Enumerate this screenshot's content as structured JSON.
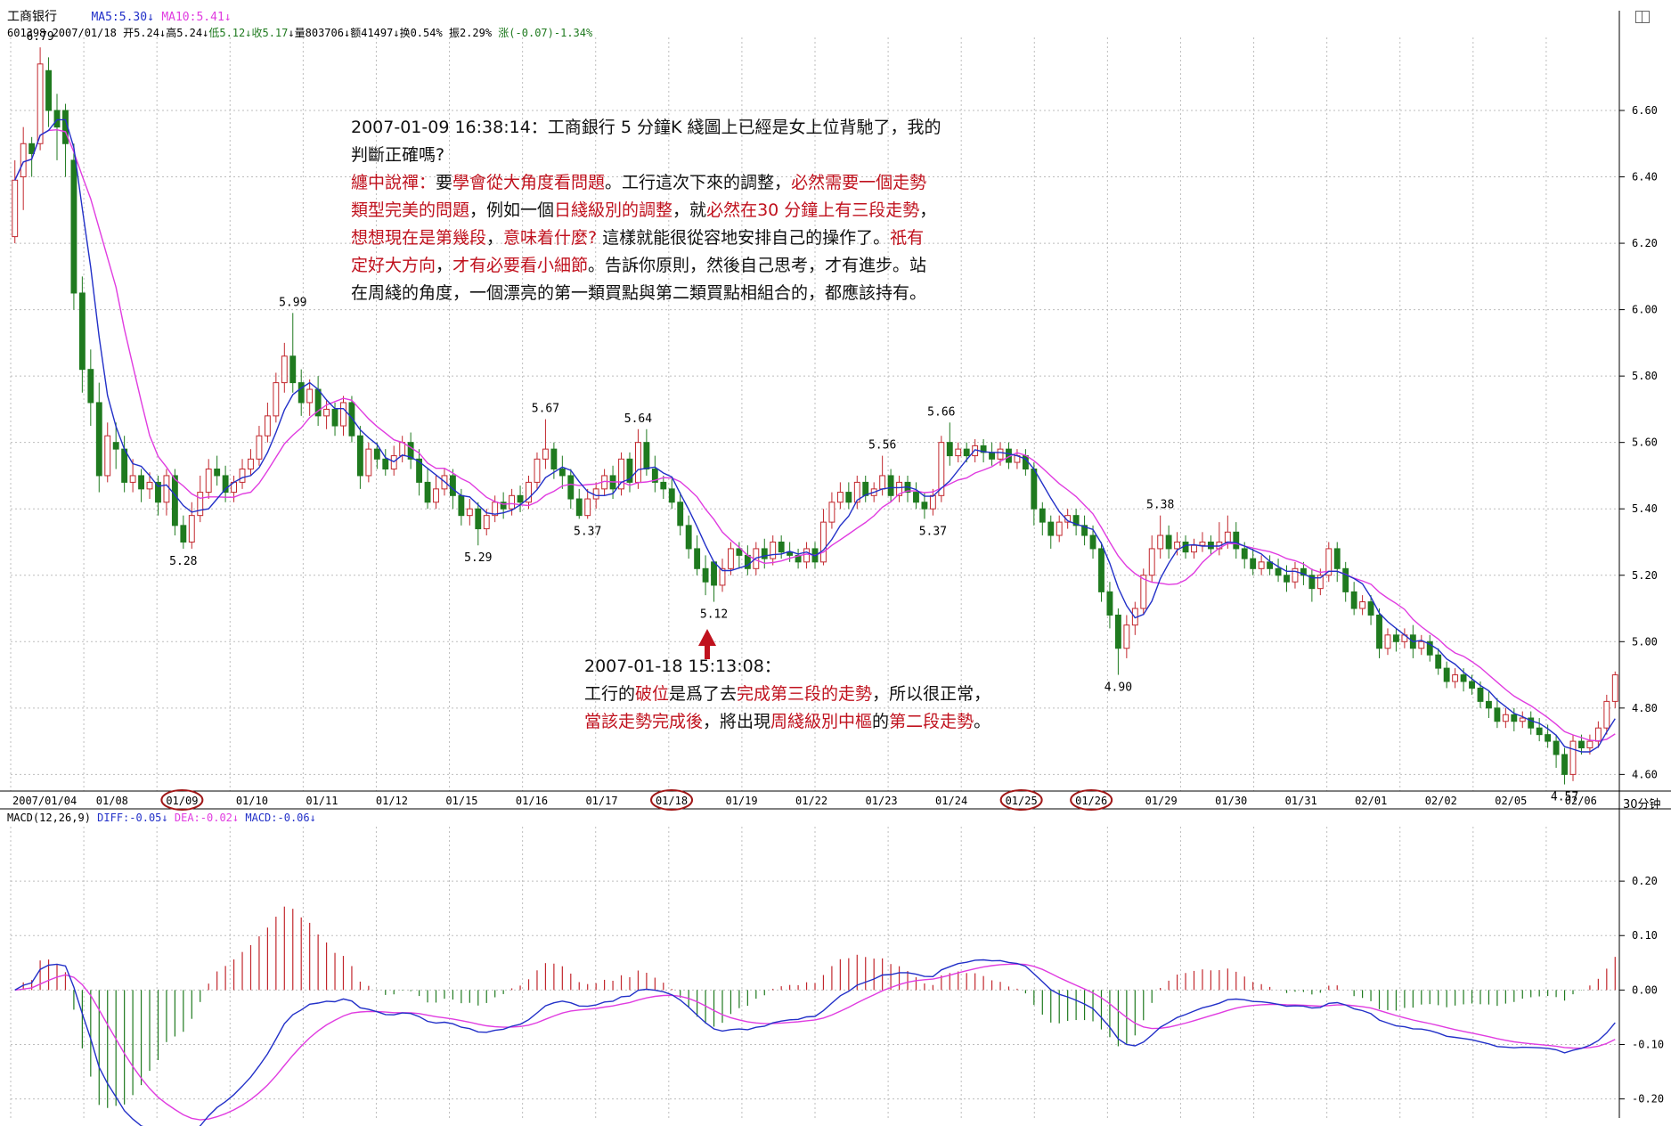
{
  "header": {
    "stock_name": "工商银行",
    "ma5": "MA5:5.30",
    "ma10": "MA10:5.41",
    "info_code_date": "601398 2007/01/18",
    "info_open": "开5.24",
    "info_high": "高5.24",
    "info_low": "低5.12",
    "info_close": "收5.17",
    "info_volume": "量803706",
    "info_amount": "额41497",
    "info_turnover": "换0.54%",
    "info_amplitude": "振2.29%",
    "info_change": "涨(-0.07)-1.34%"
  },
  "macd_header": {
    "label": "MACD(12,26,9)",
    "diff": "DIFF:-0.05",
    "dea": "DEA:-0.02",
    "macd": "MACD:-0.06"
  },
  "period_label": "30分钟",
  "colors": {
    "up": "#c2272d",
    "down": "#1f7a1f",
    "ma5": "#2230c8",
    "ma10": "#e03ce0",
    "note_red": "#c0121e",
    "grid": "#bdbdbd"
  },
  "annotations": {
    "note1_line1": "2007-01-09 16:38:14：工商銀行 5 分鐘K 綫圖上已經是女上位背馳了，我的",
    "note1_line2": "判斷正確嗎?",
    "note2_l1_a": "纏中說禪：",
    "note2_l1_b": "要",
    "note2_l1_c": "學會從大角度看問題",
    "note2_l1_d": "。工行這次下來的調整，",
    "note2_l1_e": "必然需要一個走勢",
    "note2_l2_a": "類型完美的問題",
    "note2_l2_b": "，例如一個",
    "note2_l2_c": "日綫級別的調整",
    "note2_l2_d": "，就",
    "note2_l2_e": "必然在30 分鐘上有三段走勢",
    "note2_l2_f": "，",
    "note2_l3_a": "想想現在是第幾段",
    "note2_l3_b": "，",
    "note2_l3_c": "意味着什麼?",
    "note2_l3_d": " 這樣就能很從容地安排自己的操作了。",
    "note2_l3_e": "祇有",
    "note2_l4_a": "定好大方向",
    "note2_l4_b": "，",
    "note2_l4_c": "才有必要看小細節",
    "note2_l4_d": "。告訴你原則，然後自己思考，才有進步。站",
    "note2_l5": "在周綫的角度，一個漂亮的第一類買點與第二類買點相組合的，都應該持有。",
    "note3_line1": "2007-01-18 15:13:08：",
    "note3_l2_a": "工行的",
    "note3_l2_b": "破位",
    "note3_l2_c": "是爲了去",
    "note3_l2_d": "完成第三段的走勢",
    "note3_l2_e": "，所以很正常，",
    "note3_l3_a": "當該走勢完成後",
    "note3_l3_b": "，將出現",
    "note3_l3_c": "周綫級別中樞",
    "note3_l3_d": "的",
    "note3_l3_e": "第二段走勢",
    "note3_l3_f": "。"
  },
  "chart_data": {
    "type": "candlestick",
    "price_axis": {
      "ticks": [
        "6.60",
        "6.40",
        "6.20",
        "6.00",
        "5.80",
        "5.60",
        "5.40",
        "5.20",
        "5.00",
        "4.80",
        "4.60"
      ],
      "ylim": [
        4.55,
        6.82
      ]
    },
    "macd_axis": {
      "ticks": [
        "0.20",
        "0.10",
        "0.00",
        "-0.10",
        "-0.20"
      ],
      "ylim": [
        -0.235,
        0.3
      ]
    },
    "date_labels": [
      "2007/01/04",
      "01/08",
      "01/09",
      "01/10",
      "01/11",
      "01/12",
      "01/15",
      "01/16",
      "01/17",
      "01/18",
      "01/19",
      "01/22",
      "01/23",
      "01/24",
      "01/25",
      "01/26",
      "01/29",
      "01/30",
      "01/31",
      "02/01",
      "02/02",
      "02/05",
      "02/06"
    ],
    "circled_dates": [
      "01/09",
      "01/18",
      "01/25",
      "01/26"
    ],
    "price_labels": [
      {
        "text": "6.79",
        "bar": 3,
        "value": 6.79,
        "pos": "above"
      },
      {
        "text": "5.99",
        "bar": 33,
        "value": 5.99,
        "pos": "above"
      },
      {
        "text": "5.28",
        "bar": 20,
        "value": 5.28,
        "pos": "below"
      },
      {
        "text": "5.67",
        "bar": 63,
        "value": 5.67,
        "pos": "above"
      },
      {
        "text": "5.29",
        "bar": 55,
        "value": 5.29,
        "pos": "below"
      },
      {
        "text": "5.64",
        "bar": 74,
        "value": 5.64,
        "pos": "above"
      },
      {
        "text": "5.37",
        "bar": 68,
        "value": 5.37,
        "pos": "below"
      },
      {
        "text": "5.12",
        "bar": 83,
        "value": 5.12,
        "pos": "below"
      },
      {
        "text": "5.56",
        "bar": 103,
        "value": 5.56,
        "pos": "above"
      },
      {
        "text": "5.66",
        "bar": 110,
        "value": 5.66,
        "pos": "above"
      },
      {
        "text": "5.37",
        "bar": 109,
        "value": 5.37,
        "pos": "below"
      },
      {
        "text": "4.90",
        "bar": 131,
        "value": 4.9,
        "pos": "below"
      },
      {
        "text": "5.38",
        "bar": 136,
        "value": 5.38,
        "pos": "above"
      },
      {
        "text": "4.57",
        "bar": 184,
        "value": 4.57,
        "pos": "below"
      }
    ],
    "candles": [
      [
        6.22,
        6.39,
        6.2,
        6.45
      ],
      [
        6.4,
        6.5,
        6.3,
        6.55
      ],
      [
        6.5,
        6.47,
        6.4,
        6.52
      ],
      [
        6.5,
        6.74,
        6.48,
        6.79
      ],
      [
        6.72,
        6.6,
        6.55,
        6.76
      ],
      [
        6.6,
        6.55,
        6.45,
        6.65
      ],
      [
        6.6,
        6.5,
        6.4,
        6.62
      ],
      [
        6.45,
        6.05,
        6.0,
        6.5
      ],
      [
        6.05,
        5.82,
        5.75,
        6.1
      ],
      [
        5.82,
        5.72,
        5.65,
        5.88
      ],
      [
        5.72,
        5.5,
        5.45,
        5.78
      ],
      [
        5.5,
        5.62,
        5.48,
        5.66
      ],
      [
        5.6,
        5.58,
        5.52,
        5.66
      ],
      [
        5.58,
        5.48,
        5.45,
        5.62
      ],
      [
        5.48,
        5.5,
        5.45,
        5.55
      ],
      [
        5.5,
        5.46,
        5.42,
        5.52
      ],
      [
        5.46,
        5.48,
        5.43,
        5.51
      ],
      [
        5.48,
        5.42,
        5.38,
        5.5
      ],
      [
        5.42,
        5.5,
        5.38,
        5.52
      ],
      [
        5.5,
        5.35,
        5.32,
        5.52
      ],
      [
        5.35,
        5.3,
        5.28,
        5.38
      ],
      [
        5.3,
        5.38,
        5.28,
        5.42
      ],
      [
        5.38,
        5.45,
        5.36,
        5.5
      ],
      [
        5.45,
        5.52,
        5.43,
        5.55
      ],
      [
        5.52,
        5.5,
        5.47,
        5.56
      ],
      [
        5.5,
        5.45,
        5.42,
        5.53
      ],
      [
        5.45,
        5.48,
        5.42,
        5.5
      ],
      [
        5.48,
        5.52,
        5.46,
        5.55
      ],
      [
        5.52,
        5.55,
        5.5,
        5.58
      ],
      [
        5.55,
        5.62,
        5.53,
        5.65
      ],
      [
        5.62,
        5.68,
        5.6,
        5.72
      ],
      [
        5.68,
        5.78,
        5.66,
        5.81
      ],
      [
        5.78,
        5.86,
        5.75,
        5.9
      ],
      [
        5.86,
        5.78,
        5.75,
        5.99
      ],
      [
        5.78,
        5.72,
        5.68,
        5.82
      ],
      [
        5.72,
        5.76,
        5.68,
        5.79
      ],
      [
        5.76,
        5.68,
        5.65,
        5.8
      ],
      [
        5.68,
        5.7,
        5.64,
        5.73
      ],
      [
        5.7,
        5.65,
        5.62,
        5.72
      ],
      [
        5.65,
        5.72,
        5.62,
        5.74
      ],
      [
        5.72,
        5.62,
        5.6,
        5.74
      ],
      [
        5.62,
        5.5,
        5.46,
        5.65
      ],
      [
        5.5,
        5.58,
        5.48,
        5.6
      ],
      [
        5.58,
        5.55,
        5.52,
        5.6
      ],
      [
        5.55,
        5.52,
        5.5,
        5.58
      ],
      [
        5.52,
        5.56,
        5.5,
        5.59
      ],
      [
        5.56,
        5.6,
        5.54,
        5.62
      ],
      [
        5.6,
        5.55,
        5.52,
        5.63
      ],
      [
        5.55,
        5.48,
        5.44,
        5.58
      ],
      [
        5.48,
        5.42,
        5.4,
        5.52
      ],
      [
        5.42,
        5.46,
        5.4,
        5.5
      ],
      [
        5.46,
        5.5,
        5.44,
        5.52
      ],
      [
        5.5,
        5.44,
        5.4,
        5.52
      ],
      [
        5.44,
        5.38,
        5.35,
        5.46
      ],
      [
        5.38,
        5.4,
        5.35,
        5.43
      ],
      [
        5.4,
        5.34,
        5.29,
        5.42
      ],
      [
        5.34,
        5.38,
        5.32,
        5.4
      ],
      [
        5.38,
        5.42,
        5.36,
        5.44
      ],
      [
        5.42,
        5.4,
        5.37,
        5.45
      ],
      [
        5.4,
        5.44,
        5.38,
        5.46
      ],
      [
        5.44,
        5.42,
        5.39,
        5.47
      ],
      [
        5.42,
        5.48,
        5.4,
        5.5
      ],
      [
        5.48,
        5.55,
        5.46,
        5.57
      ],
      [
        5.55,
        5.58,
        5.52,
        5.67
      ],
      [
        5.58,
        5.52,
        5.49,
        5.6
      ],
      [
        5.52,
        5.5,
        5.46,
        5.56
      ],
      [
        5.5,
        5.43,
        5.4,
        5.52
      ],
      [
        5.43,
        5.38,
        5.37,
        5.46
      ],
      [
        5.38,
        5.43,
        5.37,
        5.46
      ],
      [
        5.43,
        5.46,
        5.4,
        5.48
      ],
      [
        5.46,
        5.5,
        5.44,
        5.52
      ],
      [
        5.5,
        5.46,
        5.43,
        5.53
      ],
      [
        5.46,
        5.55,
        5.44,
        5.57
      ],
      [
        5.55,
        5.48,
        5.45,
        5.57
      ],
      [
        5.48,
        5.6,
        5.46,
        5.64
      ],
      [
        5.6,
        5.52,
        5.5,
        5.64
      ],
      [
        5.52,
        5.48,
        5.45,
        5.56
      ],
      [
        5.48,
        5.46,
        5.43,
        5.5
      ],
      [
        5.46,
        5.42,
        5.4,
        5.49
      ],
      [
        5.42,
        5.35,
        5.32,
        5.45
      ],
      [
        5.35,
        5.28,
        5.25,
        5.38
      ],
      [
        5.28,
        5.22,
        5.2,
        5.32
      ],
      [
        5.22,
        5.18,
        5.14,
        5.26
      ],
      [
        5.24,
        5.17,
        5.12,
        5.24
      ],
      [
        5.17,
        5.22,
        5.15,
        5.25
      ],
      [
        5.22,
        5.28,
        5.2,
        5.3
      ],
      [
        5.28,
        5.26,
        5.22,
        5.3
      ],
      [
        5.26,
        5.22,
        5.2,
        5.29
      ],
      [
        5.22,
        5.28,
        5.2,
        5.3
      ],
      [
        5.28,
        5.25,
        5.22,
        5.31
      ],
      [
        5.25,
        5.3,
        5.23,
        5.32
      ],
      [
        5.3,
        5.27,
        5.25,
        5.32
      ],
      [
        5.27,
        5.26,
        5.24,
        5.3
      ],
      [
        5.26,
        5.24,
        5.22,
        5.28
      ],
      [
        5.24,
        5.28,
        5.22,
        5.3
      ],
      [
        5.28,
        5.24,
        5.22,
        5.3
      ],
      [
        5.24,
        5.36,
        5.23,
        5.4
      ],
      [
        5.36,
        5.42,
        5.34,
        5.45
      ],
      [
        5.42,
        5.45,
        5.4,
        5.48
      ],
      [
        5.45,
        5.42,
        5.4,
        5.48
      ],
      [
        5.42,
        5.48,
        5.4,
        5.5
      ],
      [
        5.48,
        5.44,
        5.42,
        5.5
      ],
      [
        5.44,
        5.46,
        5.42,
        5.48
      ],
      [
        5.46,
        5.5,
        5.44,
        5.56
      ],
      [
        5.5,
        5.44,
        5.42,
        5.52
      ],
      [
        5.44,
        5.48,
        5.42,
        5.5
      ],
      [
        5.48,
        5.45,
        5.42,
        5.5
      ],
      [
        5.45,
        5.42,
        5.4,
        5.48
      ],
      [
        5.42,
        5.4,
        5.37,
        5.45
      ],
      [
        5.4,
        5.44,
        5.38,
        5.46
      ],
      [
        5.44,
        5.6,
        5.42,
        5.62
      ],
      [
        5.6,
        5.56,
        5.53,
        5.66
      ],
      [
        5.56,
        5.58,
        5.54,
        5.6
      ],
      [
        5.58,
        5.56,
        5.54,
        5.6
      ],
      [
        5.56,
        5.59,
        5.54,
        5.61
      ],
      [
        5.59,
        5.57,
        5.54,
        5.61
      ],
      [
        5.57,
        5.55,
        5.53,
        5.6
      ],
      [
        5.55,
        5.58,
        5.53,
        5.6
      ],
      [
        5.58,
        5.54,
        5.52,
        5.6
      ],
      [
        5.54,
        5.56,
        5.52,
        5.58
      ],
      [
        5.56,
        5.52,
        5.5,
        5.58
      ],
      [
        5.52,
        5.4,
        5.35,
        5.54
      ],
      [
        5.4,
        5.36,
        5.32,
        5.42
      ],
      [
        5.36,
        5.32,
        5.28,
        5.38
      ],
      [
        5.32,
        5.36,
        5.3,
        5.38
      ],
      [
        5.36,
        5.38,
        5.34,
        5.4
      ],
      [
        5.38,
        5.35,
        5.32,
        5.4
      ],
      [
        5.35,
        5.32,
        5.29,
        5.38
      ],
      [
        5.32,
        5.28,
        5.25,
        5.35
      ],
      [
        5.28,
        5.15,
        5.12,
        5.3
      ],
      [
        5.15,
        5.08,
        5.04,
        5.18
      ],
      [
        5.08,
        4.98,
        4.9,
        5.1
      ],
      [
        4.98,
        5.05,
        4.95,
        5.08
      ],
      [
        5.05,
        5.1,
        5.02,
        5.12
      ],
      [
        5.1,
        5.2,
        5.08,
        5.22
      ],
      [
        5.2,
        5.28,
        5.18,
        5.32
      ],
      [
        5.28,
        5.32,
        5.25,
        5.38
      ],
      [
        5.32,
        5.28,
        5.25,
        5.35
      ],
      [
        5.28,
        5.3,
        5.26,
        5.33
      ],
      [
        5.3,
        5.27,
        5.25,
        5.32
      ],
      [
        5.27,
        5.29,
        5.25,
        5.31
      ],
      [
        5.29,
        5.3,
        5.27,
        5.33
      ],
      [
        5.3,
        5.28,
        5.26,
        5.32
      ],
      [
        5.28,
        5.3,
        5.26,
        5.36
      ],
      [
        5.3,
        5.33,
        5.28,
        5.38
      ],
      [
        5.33,
        5.28,
        5.25,
        5.36
      ],
      [
        5.28,
        5.25,
        5.22,
        5.3
      ],
      [
        5.25,
        5.22,
        5.2,
        5.28
      ],
      [
        5.22,
        5.24,
        5.2,
        5.26
      ],
      [
        5.24,
        5.22,
        5.2,
        5.26
      ],
      [
        5.22,
        5.2,
        5.18,
        5.25
      ],
      [
        5.2,
        5.18,
        5.15,
        5.23
      ],
      [
        5.18,
        5.22,
        5.16,
        5.24
      ],
      [
        5.22,
        5.2,
        5.17,
        5.24
      ],
      [
        5.2,
        5.16,
        5.12,
        5.22
      ],
      [
        5.16,
        5.2,
        5.14,
        5.22
      ],
      [
        5.2,
        5.28,
        5.18,
        5.3
      ],
      [
        5.28,
        5.22,
        5.18,
        5.3
      ],
      [
        5.22,
        5.15,
        5.12,
        5.24
      ],
      [
        5.15,
        5.1,
        5.08,
        5.18
      ],
      [
        5.1,
        5.12,
        5.08,
        5.14
      ],
      [
        5.12,
        5.08,
        5.05,
        5.14
      ],
      [
        5.08,
        4.98,
        4.95,
        5.1
      ],
      [
        4.98,
        5.02,
        4.96,
        5.04
      ],
      [
        5.02,
        5.0,
        4.97,
        5.04
      ],
      [
        5.0,
        5.02,
        4.98,
        5.04
      ],
      [
        5.02,
        4.98,
        4.95,
        5.05
      ],
      [
        4.98,
        5.0,
        4.96,
        5.02
      ],
      [
        5.0,
        4.96,
        4.94,
        5.02
      ],
      [
        4.96,
        4.92,
        4.9,
        4.98
      ],
      [
        4.92,
        4.88,
        4.86,
        4.94
      ],
      [
        4.88,
        4.9,
        4.86,
        4.92
      ],
      [
        4.9,
        4.88,
        4.85,
        4.92
      ],
      [
        4.88,
        4.86,
        4.84,
        4.9
      ],
      [
        4.86,
        4.82,
        4.8,
        4.88
      ],
      [
        4.82,
        4.8,
        4.77,
        4.85
      ],
      [
        4.8,
        4.76,
        4.74,
        4.83
      ],
      [
        4.76,
        4.78,
        4.74,
        4.8
      ],
      [
        4.78,
        4.76,
        4.73,
        4.8
      ],
      [
        4.76,
        4.77,
        4.74,
        4.79
      ],
      [
        4.77,
        4.74,
        4.72,
        4.79
      ],
      [
        4.74,
        4.72,
        4.7,
        4.77
      ],
      [
        4.72,
        4.7,
        4.68,
        4.75
      ],
      [
        4.7,
        4.66,
        4.62,
        4.72
      ],
      [
        4.66,
        4.6,
        4.57,
        4.68
      ],
      [
        4.6,
        4.7,
        4.58,
        4.72
      ],
      [
        4.7,
        4.68,
        4.66,
        4.72
      ],
      [
        4.68,
        4.7,
        4.66,
        4.72
      ],
      [
        4.7,
        4.74,
        4.68,
        4.76
      ],
      [
        4.74,
        4.82,
        4.72,
        4.84
      ],
      [
        4.82,
        4.9,
        4.8,
        4.91
      ]
    ]
  }
}
